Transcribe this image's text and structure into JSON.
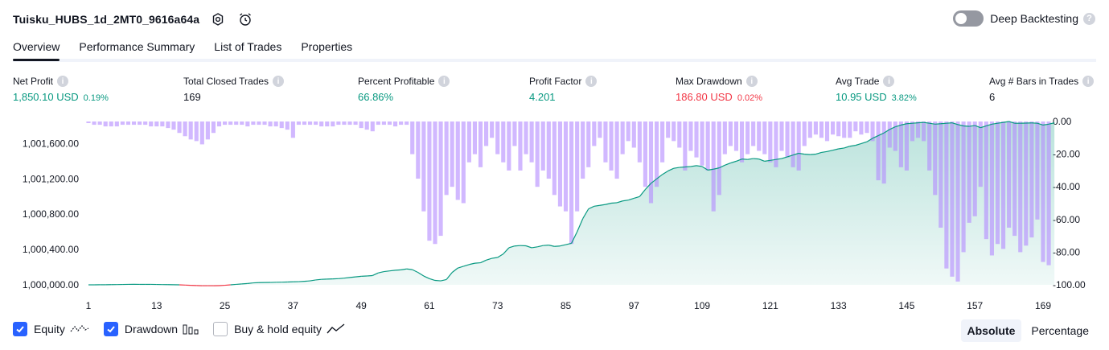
{
  "header": {
    "strategy_name": "Tuisku_HUBS_1d_2MT0_9616a64a",
    "deep_backtesting_label": "Deep Backtesting",
    "deep_backtesting_enabled": false
  },
  "tabs": [
    {
      "label": "Overview",
      "active": true
    },
    {
      "label": "Performance Summary",
      "active": false
    },
    {
      "label": "List of Trades",
      "active": false
    },
    {
      "label": "Properties",
      "active": false
    }
  ],
  "stats": [
    {
      "label": "Net Profit",
      "value": "1,850.10 USD",
      "pct": "0.19%",
      "color": "green"
    },
    {
      "label": "Total Closed Trades",
      "value": "169",
      "pct": "",
      "color": "neutral"
    },
    {
      "label": "Percent Profitable",
      "value": "66.86%",
      "pct": "",
      "color": "green"
    },
    {
      "label": "Profit Factor",
      "value": "4.201",
      "pct": "",
      "color": "green"
    },
    {
      "label": "Max Drawdown",
      "value": "186.80 USD",
      "pct": "0.02%",
      "color": "red"
    },
    {
      "label": "Avg Trade",
      "value": "10.95 USD",
      "pct": "3.82%",
      "color": "green"
    },
    {
      "label": "Avg # Bars in Trades",
      "value": "6",
      "pct": "",
      "color": "neutral"
    }
  ],
  "chart_data": {
    "type": "area",
    "x_ticks": [
      "1",
      "13",
      "25",
      "37",
      "49",
      "61",
      "73",
      "85",
      "97",
      "109",
      "121",
      "133",
      "145",
      "157",
      "169"
    ],
    "x_range": [
      1,
      169
    ],
    "left_ticks": [
      "1,000,000.00",
      "1,000,400.00",
      "1,000,800.00",
      "1,001,200.00",
      "1,001,600.00"
    ],
    "left_tick_values": [
      1000000,
      1000400,
      1000800,
      1001200,
      1001600
    ],
    "left_range": [
      1000000,
      1001850
    ],
    "right_ticks": [
      "0.00",
      "-20.00",
      "-40.00",
      "-60.00",
      "-80.00",
      "-100.00"
    ],
    "right_tick_values": [
      0,
      -20,
      -40,
      -60,
      -80,
      -100
    ],
    "right_range": [
      -100,
      0
    ],
    "series": [
      {
        "name": "Equity",
        "color": "#089981",
        "negative_color": "#f23645",
        "baseline": 1000000,
        "values": [
          1000000,
          1000000,
          1000001,
          1000001,
          1000002,
          1000003,
          1000004,
          1000005,
          1000006,
          1000005,
          1000005,
          1000005,
          1000004,
          1000003,
          1000002,
          1000001,
          1000000,
          999997,
          999994,
          999992,
          999990,
          999990,
          999990,
          999991,
          999995,
          1000000,
          1000005,
          1000010,
          1000015,
          1000022,
          1000025,
          1000026,
          1000027,
          1000029,
          1000030,
          1000032,
          1000034,
          1000036,
          1000040,
          1000045,
          1000055,
          1000062,
          1000065,
          1000067,
          1000070,
          1000076,
          1000083,
          1000090,
          1000097,
          1000100,
          1000105,
          1000135,
          1000150,
          1000158,
          1000165,
          1000170,
          1000180,
          1000172,
          1000140,
          1000100,
          1000070,
          1000050,
          1000045,
          1000060,
          1000140,
          1000190,
          1000210,
          1000230,
          1000245,
          1000250,
          1000280,
          1000300,
          1000310,
          1000350,
          1000420,
          1000440,
          1000445,
          1000442,
          1000420,
          1000430,
          1000445,
          1000450,
          1000435,
          1000440,
          1000455,
          1000470,
          1000600,
          1000750,
          1000860,
          1000890,
          1000900,
          1000910,
          1000925,
          1000930,
          1000950,
          1000960,
          1000980,
          1001000,
          1001080,
          1001150,
          1001200,
          1001250,
          1001290,
          1001320,
          1001330,
          1001335,
          1001340,
          1001350,
          1001340,
          1001300,
          1001310,
          1001325,
          1001355,
          1001380,
          1001400,
          1001425,
          1001420,
          1001430,
          1001425,
          1001400,
          1001410,
          1001420,
          1001430,
          1001450,
          1001470,
          1001490,
          1001480,
          1001475,
          1001480,
          1001500,
          1001510,
          1001525,
          1001540,
          1001550,
          1001570,
          1001580,
          1001600,
          1001620,
          1001660,
          1001690,
          1001720,
          1001760,
          1001790,
          1001810,
          1001825,
          1001830,
          1001835,
          1001840,
          1001830,
          1001820,
          1001825,
          1001830,
          1001835,
          1001815,
          1001800,
          1001795,
          1001805,
          1001780,
          1001800,
          1001820,
          1001830,
          1001840,
          1001850,
          1001830,
          1001830,
          1001832,
          1001834,
          1001830,
          1001810,
          1001820,
          1001835
        ]
      },
      {
        "name": "Drawdown",
        "color": "#b388ff",
        "values": [
          -1,
          -2,
          -2,
          -3,
          -3,
          -3,
          -2,
          -2,
          -2,
          -2,
          -2,
          -3,
          -3,
          -3,
          -4,
          -5,
          -7,
          -9,
          -11,
          -12,
          -14,
          -11,
          -7,
          -3,
          -2,
          -2,
          -2,
          -2,
          -3,
          -2,
          -2,
          -2,
          -3,
          -3,
          -4,
          -5,
          -10,
          -2,
          -2,
          -2,
          -2,
          -3,
          -3,
          -3,
          -2,
          -2,
          -2,
          -2,
          -4,
          -5,
          -6,
          -2,
          -2,
          -2,
          -3,
          -2,
          -2,
          -20,
          -35,
          -55,
          -73,
          -75,
          -70,
          -45,
          -40,
          -48,
          -50,
          -25,
          -20,
          -28,
          -15,
          -10,
          -20,
          -25,
          -30,
          -15,
          -30,
          -20,
          -25,
          -40,
          -30,
          -35,
          -45,
          -52,
          -55,
          -75,
          -55,
          -35,
          -28,
          -15,
          -10,
          -25,
          -30,
          -35,
          -20,
          -12,
          -16,
          -25,
          -40,
          -50,
          -40,
          -25,
          -10,
          -12,
          -16,
          -30,
          -18,
          -22,
          -27,
          -30,
          -55,
          -45,
          -20,
          -15,
          -18,
          -25,
          -20,
          -15,
          -18,
          -20,
          -25,
          -28,
          -18,
          -22,
          -28,
          -30,
          -15,
          -10,
          -8,
          -10,
          -12,
          -8,
          -9,
          -10,
          -10,
          -6,
          -8,
          -7,
          -12,
          -36,
          -38,
          -16,
          -18,
          -28,
          -30,
          -12,
          -10,
          -12,
          -30,
          -45,
          -65,
          -90,
          -95,
          -98,
          -80,
          -62,
          -58,
          -40,
          -72,
          -82,
          -75,
          -78,
          -65,
          -70,
          -80,
          -76,
          -71,
          -60,
          -86,
          -88
        ]
      }
    ]
  },
  "legend": [
    {
      "label": "Equity",
      "checked": true,
      "icon": "equity-line-icon"
    },
    {
      "label": "Drawdown",
      "checked": true,
      "icon": "drawdown-bars-icon"
    },
    {
      "label": "Buy & hold equity",
      "checked": false,
      "icon": "buy-hold-line-icon"
    }
  ],
  "mode_buttons": [
    {
      "label": "Absolute",
      "active": true
    },
    {
      "label": "Percentage",
      "active": false
    }
  ]
}
